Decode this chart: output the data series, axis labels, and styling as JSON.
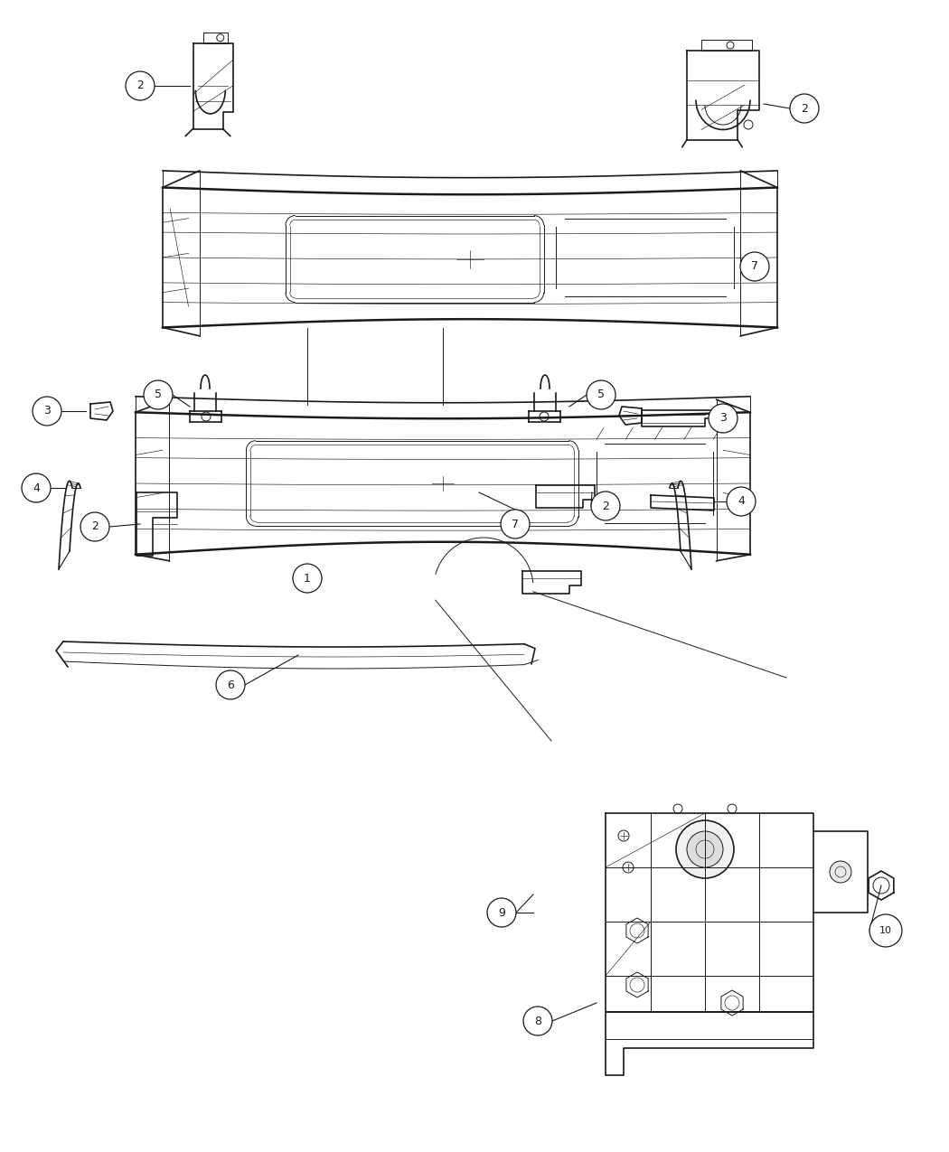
{
  "bg_color": "#ffffff",
  "line_color": "#1a1a1a",
  "fig_width": 10.5,
  "fig_height": 12.75,
  "dpi": 100
}
